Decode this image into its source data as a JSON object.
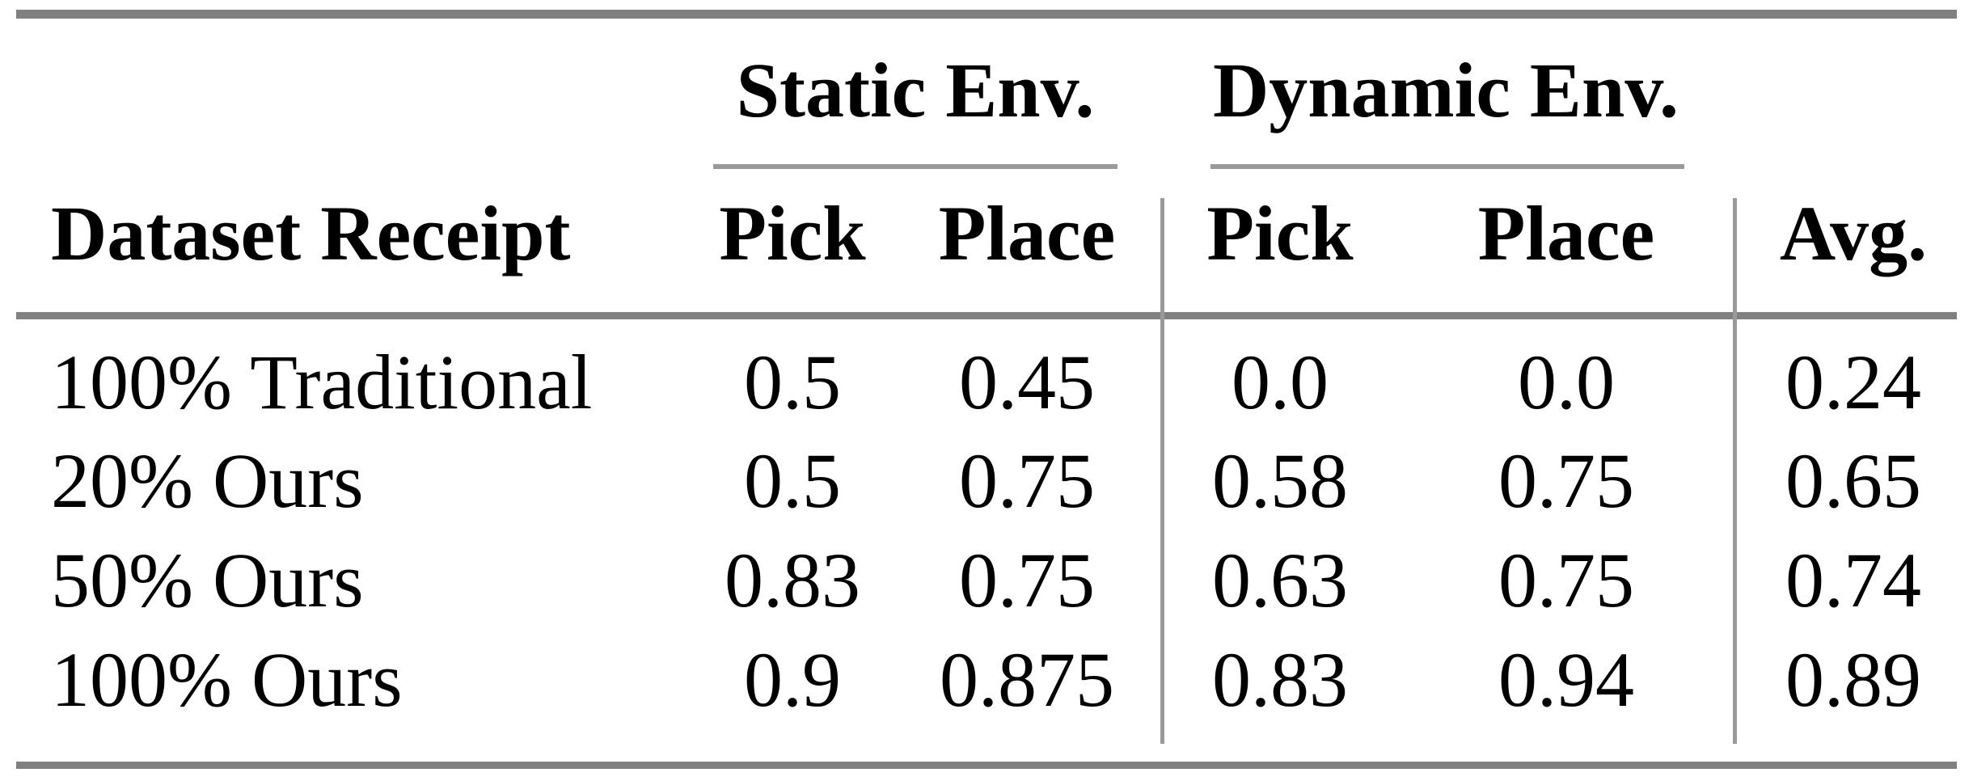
{
  "table": {
    "group_headers": [
      {
        "label": "Static Env."
      },
      {
        "label": "Dynamic Env."
      }
    ],
    "row_header_label": "Dataset Receipt",
    "columns": [
      "Pick",
      "Place",
      "Pick",
      "Place",
      "Avg."
    ],
    "rows": [
      {
        "label": "100% Traditional",
        "values": [
          "0.5",
          "0.45",
          "0.0",
          "0.0",
          "0.24"
        ]
      },
      {
        "label": "20% Ours",
        "values": [
          "0.5",
          "0.75",
          "0.58",
          "0.75",
          "0.65"
        ]
      },
      {
        "label": "50% Ours",
        "values": [
          "0.83",
          "0.75",
          "0.63",
          "0.75",
          "0.74"
        ]
      },
      {
        "label": "100% Ours",
        "values": [
          "0.9",
          "0.875",
          "0.83",
          "0.94",
          "0.89"
        ]
      }
    ],
    "colors": {
      "heavy_rule": "#808080",
      "light_rule": "#9a9a9a",
      "text": "#000000",
      "background": "#ffffff"
    }
  },
  "chart_data": {
    "type": "table",
    "title": "",
    "column_groups": [
      "Static Env.",
      "Dynamic Env."
    ],
    "columns": [
      "Dataset Receipt",
      "Static Pick",
      "Static Place",
      "Dynamic Pick",
      "Dynamic Place",
      "Avg."
    ],
    "rows": [
      [
        "100% Traditional",
        0.5,
        0.45,
        0.0,
        0.0,
        0.24
      ],
      [
        "20% Ours",
        0.5,
        0.75,
        0.58,
        0.75,
        0.65
      ],
      [
        "50% Ours",
        0.83,
        0.75,
        0.63,
        0.75,
        0.74
      ],
      [
        "100% Ours",
        0.9,
        0.875,
        0.83,
        0.94,
        0.89
      ]
    ]
  }
}
